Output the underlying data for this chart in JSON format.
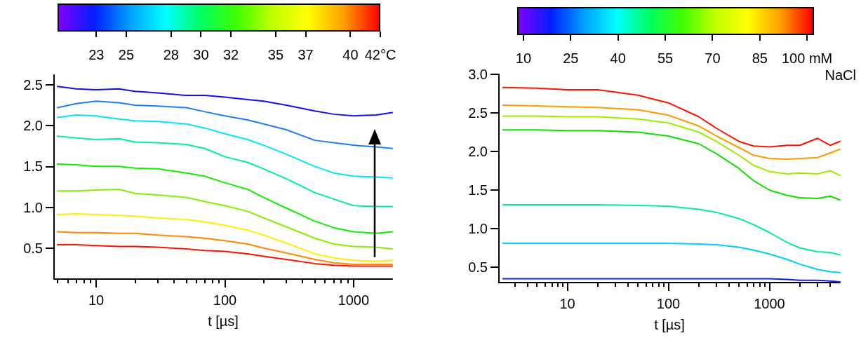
{
  "chart_data": [
    {
      "type": "line",
      "xlabel": "t [µs]",
      "log": "x",
      "grid": false,
      "xlim": [
        4.7,
        2000
      ],
      "xticks": [
        10,
        100,
        1000
      ],
      "ylim": [
        0.12,
        2.62
      ],
      "yticks": [
        0.5,
        {
          "value": 1,
          "label": "1.0"
        },
        1.5,
        {
          "value": 2,
          "label": "2.0"
        },
        2.5
      ],
      "clim": [
        20.4,
        42
      ],
      "cticks": [
        23,
        25,
        28,
        30,
        32,
        35,
        37,
        40,
        {
          "value": 42,
          "label": "42°C"
        }
      ],
      "x": [
        5,
        7,
        10,
        15,
        20,
        30,
        50,
        70,
        100,
        150,
        200,
        300,
        500,
        700,
        1000,
        1500,
        2000
      ],
      "series": [
        {
          "color": "#1010e8",
          "values": [
            2.48,
            2.45,
            2.44,
            2.45,
            2.42,
            2.4,
            2.37,
            2.37,
            2.35,
            2.32,
            2.3,
            2.25,
            2.18,
            2.14,
            2.12,
            2.13,
            2.16
          ]
        },
        {
          "color": "#1a80f0",
          "values": [
            2.22,
            2.27,
            2.3,
            2.28,
            2.25,
            2.24,
            2.22,
            2.17,
            2.12,
            2.07,
            2.02,
            1.95,
            1.82,
            1.79,
            1.76,
            1.74,
            1.72
          ]
        },
        {
          "color": "#00e5ff",
          "values": [
            2.1,
            2.13,
            2.12,
            2.08,
            2.06,
            2.05,
            2.02,
            1.97,
            1.9,
            1.83,
            1.76,
            1.65,
            1.5,
            1.42,
            1.38,
            1.37,
            1.36
          ]
        },
        {
          "color": "#00ee99",
          "values": [
            1.87,
            1.85,
            1.83,
            1.84,
            1.8,
            1.79,
            1.77,
            1.72,
            1.62,
            1.55,
            1.47,
            1.35,
            1.18,
            1.1,
            1.02,
            1.01,
            1.01
          ]
        },
        {
          "color": "#11ee00",
          "values": [
            1.53,
            1.52,
            1.5,
            1.5,
            1.48,
            1.47,
            1.42,
            1.38,
            1.3,
            1.22,
            1.12,
            0.99,
            0.83,
            0.75,
            0.7,
            0.68,
            0.7
          ]
        },
        {
          "color": "#88ee00",
          "values": [
            1.2,
            1.2,
            1.21,
            1.22,
            1.17,
            1.15,
            1.12,
            1.07,
            1.02,
            0.95,
            0.87,
            0.76,
            0.62,
            0.55,
            0.52,
            0.51,
            0.49
          ]
        },
        {
          "color": "#ffee00",
          "values": [
            0.91,
            0.92,
            0.91,
            0.9,
            0.89,
            0.87,
            0.85,
            0.82,
            0.78,
            0.72,
            0.66,
            0.56,
            0.43,
            0.38,
            0.35,
            0.34,
            0.35
          ]
        },
        {
          "color": "#ff8800",
          "values": [
            0.7,
            0.69,
            0.69,
            0.68,
            0.68,
            0.66,
            0.64,
            0.62,
            0.59,
            0.55,
            0.5,
            0.44,
            0.36,
            0.32,
            0.3,
            0.3,
            0.3
          ]
        },
        {
          "color": "#ff1100",
          "values": [
            0.54,
            0.54,
            0.53,
            0.52,
            0.52,
            0.51,
            0.49,
            0.47,
            0.46,
            0.43,
            0.4,
            0.36,
            0.31,
            0.29,
            0.28,
            0.28,
            0.28
          ]
        }
      ]
    },
    {
      "type": "line",
      "xlabel": "t [µs]",
      "log": "x",
      "grid": false,
      "xlim": [
        2.1,
        5000
      ],
      "xticks": [
        10,
        100,
        1000
      ],
      "ylim": [
        0.3,
        3.0
      ],
      "yticks": [
        0.5,
        {
          "value": 1,
          "label": "1.0"
        },
        1.5,
        {
          "value": 2,
          "label": "2.0"
        },
        2.5,
        {
          "value": 3,
          "label": "3.0"
        }
      ],
      "clim": [
        8,
        102.2
      ],
      "cticks": [
        10,
        25,
        40,
        55,
        70,
        85,
        {
          "value": 100,
          "label": "100 mM"
        }
      ],
      "clabel": "NaCl",
      "x": [
        2.3,
        5,
        10,
        20,
        50,
        100,
        200,
        300,
        500,
        700,
        1000,
        1500,
        2000,
        3000,
        4000,
        5000
      ],
      "series": [
        {
          "color": "#ff1100",
          "values": [
            2.83,
            2.82,
            2.8,
            2.8,
            2.73,
            2.63,
            2.45,
            2.3,
            2.13,
            2.07,
            2.06,
            2.08,
            2.08,
            2.17,
            2.08,
            2.13
          ]
        },
        {
          "color": "#ff9900",
          "values": [
            2.6,
            2.59,
            2.58,
            2.57,
            2.54,
            2.47,
            2.33,
            2.2,
            2.05,
            1.95,
            1.91,
            1.9,
            1.91,
            1.92,
            1.98,
            2.03
          ]
        },
        {
          "color": "#99ee00",
          "values": [
            2.46,
            2.46,
            2.45,
            2.45,
            2.42,
            2.37,
            2.25,
            2.13,
            1.95,
            1.82,
            1.74,
            1.71,
            1.72,
            1.71,
            1.75,
            1.69
          ]
        },
        {
          "color": "#11dd00",
          "values": [
            2.28,
            2.28,
            2.27,
            2.27,
            2.25,
            2.2,
            2.1,
            1.97,
            1.78,
            1.62,
            1.5,
            1.43,
            1.4,
            1.39,
            1.42,
            1.37
          ]
        },
        {
          "color": "#00ee99",
          "values": [
            1.31,
            1.31,
            1.31,
            1.31,
            1.3,
            1.29,
            1.25,
            1.21,
            1.13,
            1.05,
            0.95,
            0.82,
            0.75,
            0.7,
            0.69,
            0.66
          ]
        },
        {
          "color": "#00ccff",
          "values": [
            0.81,
            0.81,
            0.81,
            0.81,
            0.81,
            0.81,
            0.8,
            0.79,
            0.76,
            0.72,
            0.67,
            0.6,
            0.54,
            0.47,
            0.44,
            0.43
          ]
        },
        {
          "color": "#1020e0",
          "values": [
            0.35,
            0.35,
            0.35,
            0.35,
            0.35,
            0.35,
            0.35,
            0.35,
            0.35,
            0.35,
            0.35,
            0.34,
            0.33,
            0.33,
            0.32,
            0.31
          ]
        }
      ]
    }
  ]
}
